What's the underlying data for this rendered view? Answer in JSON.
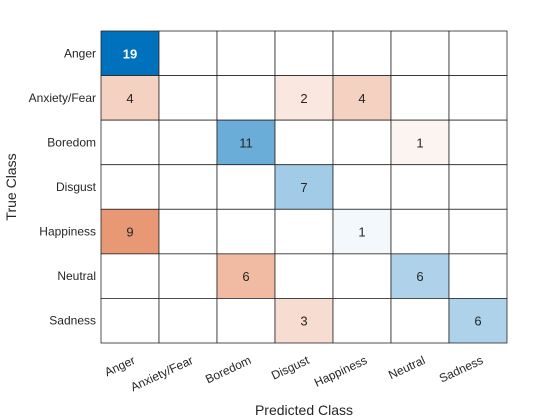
{
  "chart_data": {
    "type": "heatmap",
    "title": "",
    "xlabel": "Predicted Class",
    "ylabel": "True Class",
    "classes": [
      "Anger",
      "Anxiety/Fear",
      "Boredom",
      "Disgust",
      "Happiness",
      "Neutral",
      "Sadness"
    ],
    "matrix": [
      [
        19,
        0,
        0,
        0,
        0,
        0,
        0
      ],
      [
        4,
        0,
        0,
        2,
        4,
        0,
        0
      ],
      [
        0,
        0,
        11,
        0,
        0,
        1,
        0
      ],
      [
        0,
        0,
        0,
        7,
        0,
        0,
        0
      ],
      [
        9,
        0,
        0,
        0,
        1,
        0,
        0
      ],
      [
        0,
        0,
        6,
        0,
        0,
        6,
        0
      ],
      [
        0,
        0,
        0,
        3,
        0,
        0,
        6
      ]
    ],
    "colors": {
      "diagonal_max": "#0072BD",
      "offdiag_max": "#D95319",
      "gridline": "#262626",
      "background": "#FFFFFF"
    }
  }
}
